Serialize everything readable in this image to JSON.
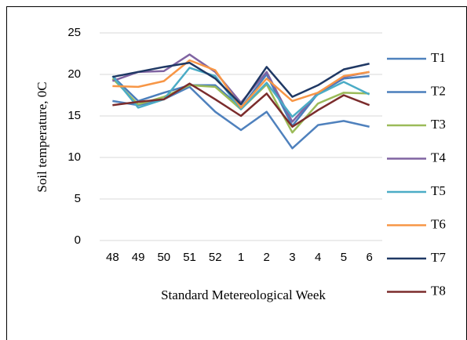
{
  "chart_data": {
    "type": "line",
    "ylabel": "Soil temperature, 0C",
    "xlabel": "Standard Metereological Week",
    "categories": [
      "48",
      "49",
      "50",
      "51",
      "52",
      "1",
      "2",
      "3",
      "4",
      "5",
      "6"
    ],
    "ylim": [
      0,
      25
    ],
    "yticks": [
      0,
      5,
      10,
      15,
      20,
      25
    ],
    "grid": true,
    "legend": "right",
    "series": [
      {
        "name": "T1",
        "color": "#4f81bd",
        "values": [
          16.8,
          16.3,
          17.0,
          18.5,
          15.5,
          13.3,
          15.5,
          11.1,
          13.9,
          14.4,
          13.7
        ]
      },
      {
        "name": "T2",
        "color": "#4a7ebb",
        "values": [
          19.8,
          16.8,
          17.8,
          18.7,
          18.7,
          16.0,
          20.0,
          13.8,
          17.7,
          19.5,
          19.8
        ]
      },
      {
        "name": "T3",
        "color": "#9bbb59",
        "values": [
          19.5,
          16.4,
          17.3,
          18.7,
          18.5,
          15.8,
          18.8,
          13.0,
          16.5,
          17.8,
          17.7
        ]
      },
      {
        "name": "T4",
        "color": "#8064a2",
        "values": [
          19.2,
          20.3,
          20.4,
          22.4,
          20.3,
          16.6,
          20.3,
          14.3,
          17.8,
          19.7,
          20.3
        ]
      },
      {
        "name": "T5",
        "color": "#4bacc6",
        "values": [
          19.8,
          16.0,
          17.0,
          20.8,
          19.8,
          15.8,
          19.0,
          14.9,
          17.6,
          19.1,
          17.6
        ]
      },
      {
        "name": "T6",
        "color": "#f79646",
        "values": [
          18.6,
          18.5,
          19.2,
          21.7,
          20.5,
          16.0,
          19.5,
          16.8,
          17.8,
          19.8,
          20.3
        ]
      },
      {
        "name": "T7",
        "color": "#1f3864",
        "values": [
          19.7,
          20.3,
          20.9,
          21.4,
          19.5,
          16.4,
          20.9,
          17.3,
          18.7,
          20.6,
          21.3
        ]
      },
      {
        "name": "T8",
        "color": "#7b2c2c",
        "values": [
          16.3,
          16.7,
          17.0,
          18.9,
          17.0,
          15.0,
          17.7,
          13.7,
          15.7,
          17.5,
          16.3
        ]
      }
    ]
  }
}
